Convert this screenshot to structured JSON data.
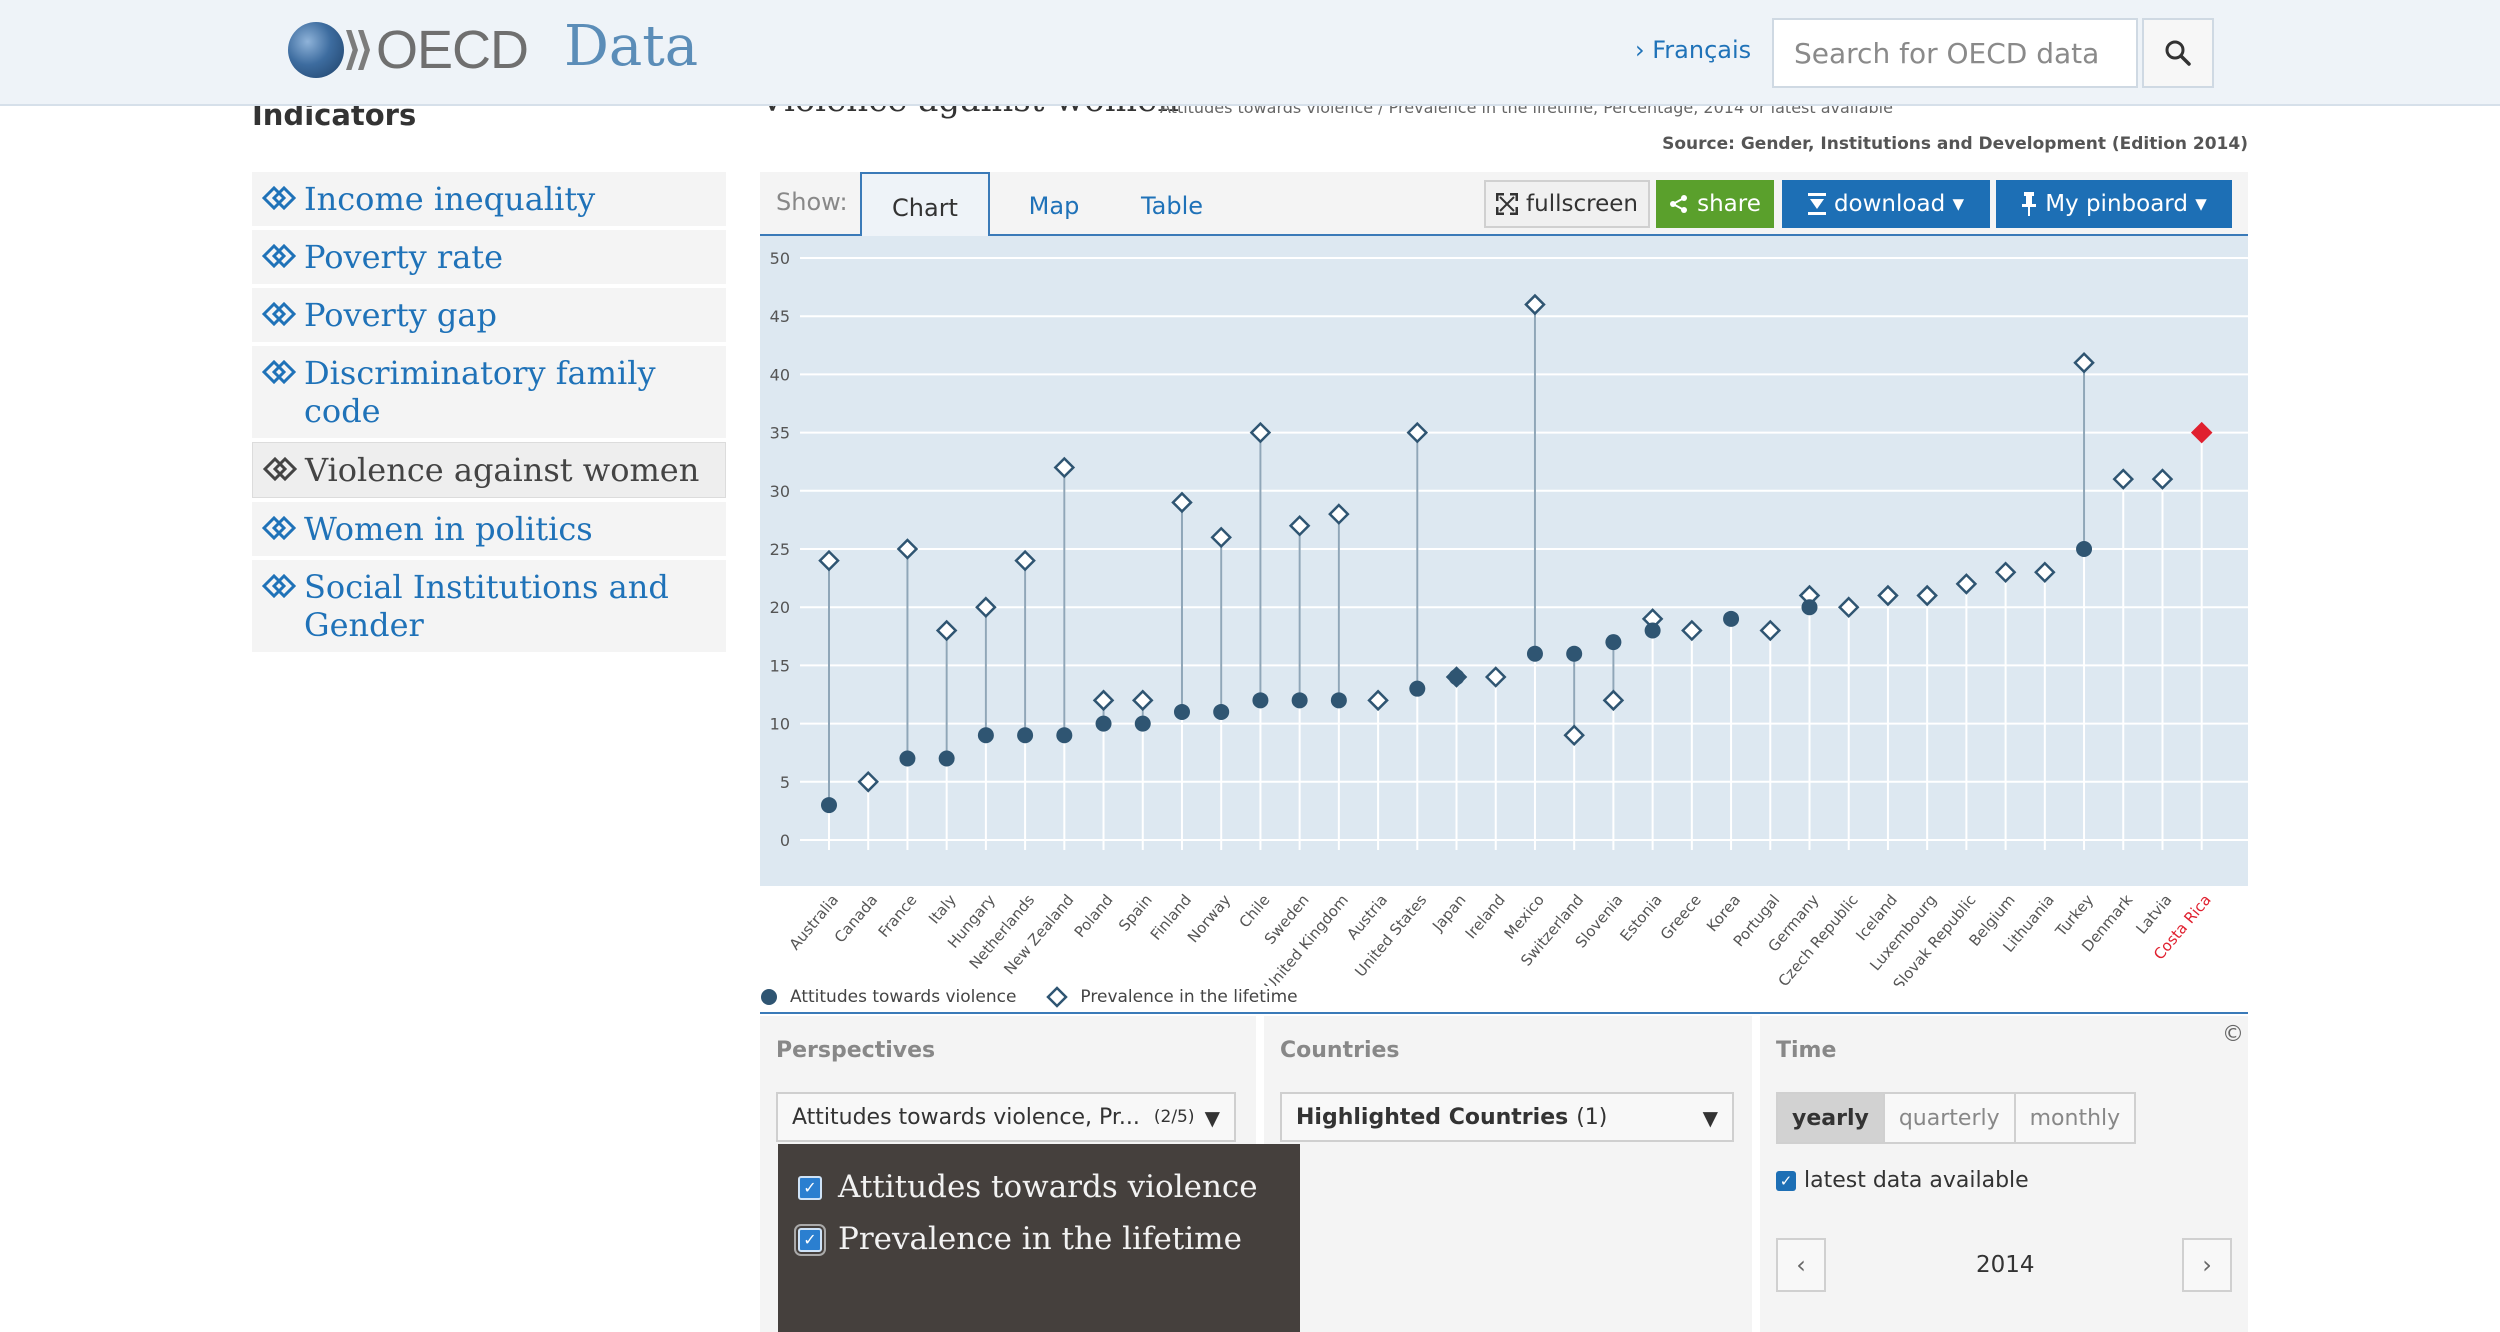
{
  "header": {
    "logo_text": "OECD",
    "site_title": "Data",
    "lang_link": "› Français",
    "search_placeholder": "Search for OECD data"
  },
  "sidebar": {
    "heading": "Indicators",
    "items": [
      {
        "label": "Income inequality",
        "active": false
      },
      {
        "label": "Poverty rate",
        "active": false
      },
      {
        "label": "Poverty gap",
        "active": false
      },
      {
        "label": "Discriminatory family code",
        "active": false
      },
      {
        "label": "Violence against women",
        "active": true
      },
      {
        "label": "Women in politics",
        "active": false
      },
      {
        "label": "Social Institutions and Gender",
        "active": false
      }
    ]
  },
  "page": {
    "title": "Violence against women",
    "subtitle": "Attitudes towards violence / Prevalence in the lifetime, Percentage, 2014 or latest available",
    "source": "Source: Gender, Institutions and Development (Edition 2014)"
  },
  "toolbar": {
    "show_label": "Show:",
    "tabs": [
      "Chart",
      "Map",
      "Table"
    ],
    "active_tab": "Chart",
    "fullscreen": "fullscreen",
    "share": "share",
    "download": "download ▾",
    "pinboard": "My pinboard ▾"
  },
  "colors": {
    "attitudes": "#2f5572",
    "prevalence": "#2f5572",
    "highlight": "#e0202f",
    "accent": "#1d6fb5"
  },
  "chart_data": {
    "type": "scatter",
    "title": "",
    "ylim": [
      0,
      50
    ],
    "yticks": [
      0,
      5,
      10,
      15,
      20,
      25,
      30,
      35,
      40,
      45,
      50
    ],
    "grid": true,
    "legend_position": "bottom-left",
    "categories": [
      "Australia",
      "Canada",
      "France",
      "Italy",
      "Hungary",
      "Netherlands",
      "New Zealand",
      "Poland",
      "Spain",
      "Finland",
      "Norway",
      "Chile",
      "Sweden",
      "United Kingdom",
      "Austria",
      "United States",
      "Japan",
      "Ireland",
      "Mexico",
      "Switzerland",
      "Slovenia",
      "Estonia",
      "Greece",
      "Korea",
      "Portugal",
      "Germany",
      "Czech Republic",
      "Iceland",
      "Luxembourg",
      "Slovak Republic",
      "Belgium",
      "Lithuania",
      "Turkey",
      "Denmark",
      "Latvia",
      "Costa Rica"
    ],
    "highlighted": [
      "Costa Rica"
    ],
    "series": [
      {
        "name": "Attitudes towards violence",
        "marker": "circle",
        "values": [
          3,
          null,
          7,
          7,
          9,
          9,
          9,
          10,
          10,
          11,
          11,
          12,
          12,
          12,
          null,
          13,
          14,
          null,
          16,
          16,
          17,
          18,
          null,
          19,
          null,
          20,
          null,
          null,
          null,
          null,
          null,
          null,
          25,
          null,
          null,
          null
        ]
      },
      {
        "name": "Prevalence in the lifetime",
        "marker": "diamond",
        "values": [
          24,
          5,
          25,
          18,
          20,
          24,
          32,
          12,
          12,
          29,
          26,
          35,
          27,
          28,
          12,
          35,
          14,
          14,
          46,
          9,
          12,
          19,
          18,
          null,
          18,
          21,
          20,
          21,
          21,
          22,
          23,
          23,
          41,
          31,
          31,
          35
        ]
      }
    ]
  },
  "legend": [
    {
      "label": "Attitudes towards violence",
      "marker": "circle"
    },
    {
      "label": "Prevalence in the lifetime",
      "marker": "diamond"
    }
  ],
  "controls": {
    "perspectives": {
      "label": "Perspectives",
      "value": "Attitudes towards violence, Pr...",
      "count": "(2/5)"
    },
    "countries": {
      "label": "Countries",
      "value": "Highlighted Countries",
      "count": "(1)"
    },
    "time": {
      "label": "Time",
      "options": [
        "yearly",
        "quarterly",
        "monthly"
      ],
      "selected": "yearly",
      "latest_label": "latest data available",
      "year": "2014"
    },
    "copyright": "©"
  },
  "popup": {
    "items": [
      {
        "label": "Attitudes towards violence",
        "checked": true
      },
      {
        "label": "Prevalence in the lifetime",
        "checked": true
      }
    ]
  }
}
